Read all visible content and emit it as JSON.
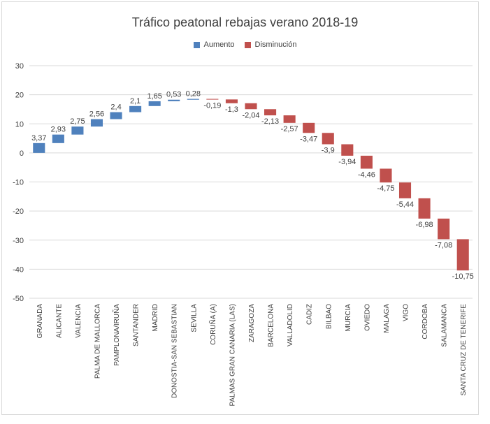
{
  "chart_data": {
    "type": "bar",
    "subtype": "waterfall",
    "title": "Tráfico peatonal rebajas verano 2018-19",
    "legend": [
      {
        "name": "Aumento",
        "color": "#4f81bd"
      },
      {
        "name": "Disminución",
        "color": "#c0504d"
      }
    ],
    "legend_position": "top",
    "ylim": [
      -50,
      30
    ],
    "yticks": [
      30,
      20,
      10,
      0,
      -10,
      -20,
      -30,
      -40,
      -50
    ],
    "grid": true,
    "categories": [
      "GRANADA",
      "ALICANTE",
      "VALENCIA",
      "PALMA DE MALLORCA",
      "PAMPLONA/IRUÑA",
      "SANTANDER",
      "MADRID",
      "DONOSTIA-SAN SEBASTIAN",
      "SEVILLA",
      "CORUÑA (A)",
      "PALMAS GRAN CANARIA (LAS)",
      "ZARAGOZA",
      "BARCELONA",
      "VALLADOLID",
      "CADIZ",
      "BILBAO",
      "MURCIA",
      "OVIEDO",
      "MALAGA",
      "VIGO",
      "CORDOBA",
      "SALAMANCA",
      "SANTA CRUZ DE TENERIFE"
    ],
    "values": [
      3.37,
      2.93,
      2.75,
      2.56,
      2.4,
      2.1,
      1.65,
      0.53,
      0.28,
      -0.19,
      -1.3,
      -2.04,
      -2.13,
      -2.57,
      -3.47,
      -3.9,
      -3.94,
      -4.46,
      -4.75,
      -5.44,
      -6.98,
      -7.08,
      -10.75
    ],
    "value_labels": [
      "3,37",
      "2,93",
      "2,75",
      "2,56",
      "2,4",
      "2,1",
      "1,65",
      "0,53",
      "0,28",
      "-0,19",
      "-1,3",
      "-2,04",
      "-2,13",
      "-2,57",
      "-3,47",
      "-3,9",
      "-3,94",
      "-4,46",
      "-4,75",
      "-5,44",
      "-6,98",
      "-7,08",
      "-10,75"
    ]
  }
}
